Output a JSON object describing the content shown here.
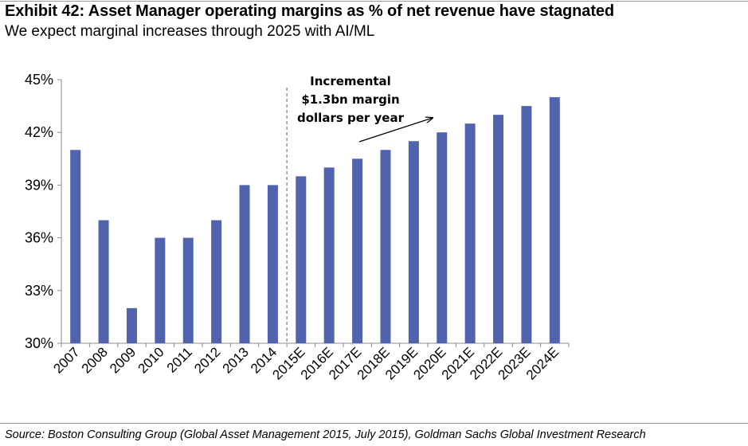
{
  "header": {
    "title": "Exhibit 42: Asset Manager operating margins as % of net revenue have stagnated",
    "subtitle": "We expect marginal increases through 2025 with AI/ML"
  },
  "footer": {
    "source": "Source: Boston Consulting Group (Global Asset Management 2015, July 2015), Goldman Sachs Global Investment Research"
  },
  "chart_data": {
    "type": "bar",
    "categories": [
      "2007",
      "2008",
      "2009",
      "2010",
      "2011",
      "2012",
      "2013",
      "2014",
      "2015E",
      "2016E",
      "2017E",
      "2018E",
      "2019E",
      "2020E",
      "2021E",
      "2022E",
      "2023E",
      "2024E"
    ],
    "values": [
      41,
      37,
      32,
      36,
      36,
      37,
      39,
      39,
      39.5,
      40,
      40.5,
      41,
      41.5,
      42,
      42.5,
      43,
      43.5,
      44
    ],
    "ylim": [
      30,
      45
    ],
    "yticks": [
      30,
      33,
      36,
      39,
      42,
      45
    ],
    "ytick_labels": [
      "30%",
      "33%",
      "36%",
      "39%",
      "42%",
      "45%"
    ],
    "bar_color": "#5163ad",
    "forecast_divider_after": "2014",
    "annotation": {
      "lines": [
        "Incremental",
        "$1.3bn margin",
        "dollars per year"
      ]
    },
    "grid": false,
    "legend": "none"
  }
}
